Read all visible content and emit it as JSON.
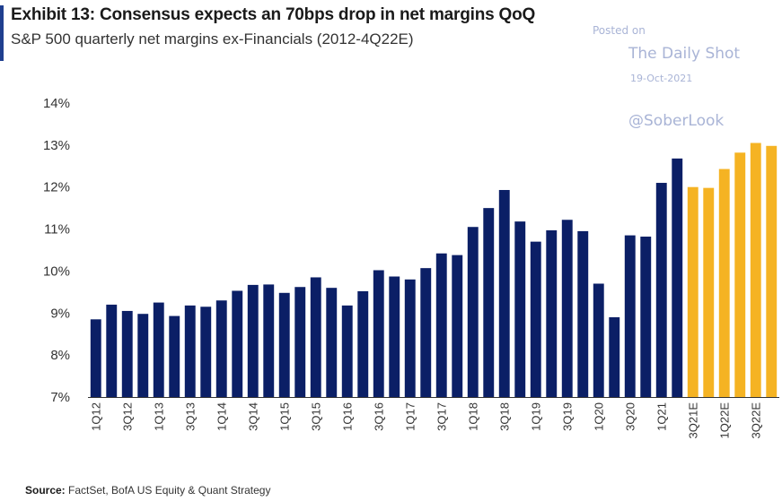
{
  "header": {
    "title": "Exhibit 13: Consensus expects an 70bps drop in net margins QoQ",
    "subtitle": "S&P 500 quarterly net margins ex-Financials (2012-4Q22E)"
  },
  "watermark": {
    "posted": "Posted on",
    "name": "The Daily Shot",
    "date": "19-Oct-2021",
    "handle": "@SoberLook"
  },
  "footer": {
    "source_label": "Source:",
    "source_text": "FactSet, BofA US Equity & Quant Strategy"
  },
  "colors": {
    "actual": "#0b1f66",
    "estimate": "#f5b323",
    "accent": "#1f3f8f"
  },
  "chart_data": {
    "type": "bar",
    "ylim": [
      7,
      14
    ],
    "yticks": [
      7,
      8,
      9,
      10,
      11,
      12,
      13,
      14
    ],
    "ytick_format": "%",
    "grid": false,
    "categories": [
      "1Q12",
      "2Q12",
      "3Q12",
      "4Q12",
      "1Q13",
      "2Q13",
      "3Q13",
      "4Q13",
      "1Q14",
      "2Q14",
      "3Q14",
      "4Q14",
      "1Q15",
      "2Q15",
      "3Q15",
      "4Q15",
      "1Q16",
      "2Q16",
      "3Q16",
      "4Q16",
      "1Q17",
      "2Q17",
      "3Q17",
      "4Q17",
      "1Q18",
      "2Q18",
      "3Q18",
      "4Q18",
      "1Q19",
      "2Q19",
      "3Q19",
      "4Q19",
      "1Q20",
      "2Q20",
      "3Q20",
      "4Q20",
      "1Q21",
      "2Q21",
      "3Q21E",
      "4Q21E",
      "1Q22E",
      "2Q22E",
      "3Q22E",
      "4Q22E"
    ],
    "xtick_labels": [
      "1Q12",
      "3Q12",
      "1Q13",
      "3Q13",
      "1Q14",
      "3Q14",
      "1Q15",
      "3Q15",
      "1Q16",
      "3Q16",
      "1Q17",
      "3Q17",
      "1Q18",
      "3Q18",
      "1Q19",
      "3Q19",
      "1Q20",
      "3Q20",
      "1Q21",
      "3Q21E",
      "1Q22E",
      "3Q22E"
    ],
    "values": [
      8.85,
      9.2,
      9.05,
      8.98,
      9.25,
      8.93,
      9.18,
      9.15,
      9.3,
      9.53,
      9.67,
      9.68,
      9.48,
      9.62,
      9.85,
      9.6,
      9.18,
      9.52,
      10.02,
      9.87,
      9.8,
      10.07,
      10.42,
      10.38,
      11.05,
      11.5,
      11.93,
      11.18,
      10.7,
      10.97,
      11.22,
      10.95,
      9.7,
      8.9,
      10.85,
      10.82,
      12.1,
      12.68,
      12.0,
      11.98,
      12.43,
      12.82,
      13.05,
      12.98
    ],
    "estimate_start_index": 38
  }
}
